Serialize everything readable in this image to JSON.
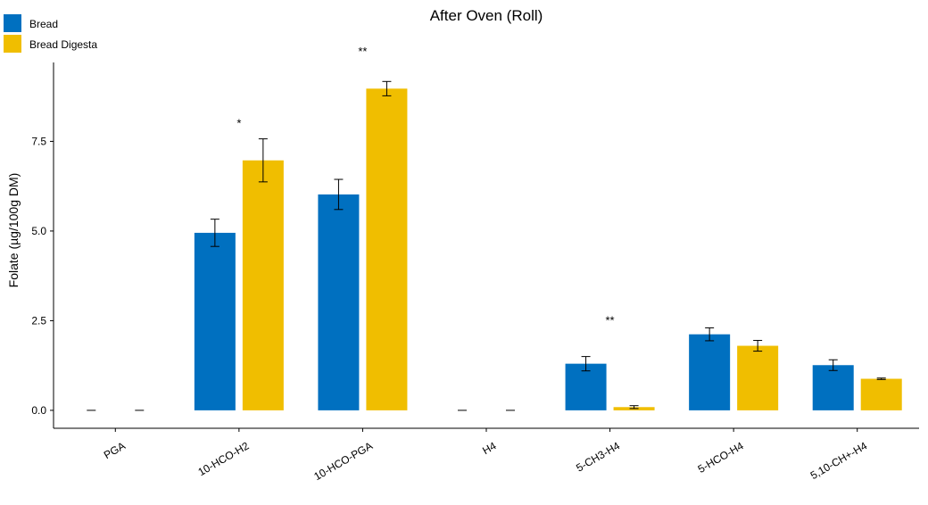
{
  "chart_data": {
    "type": "bar",
    "title": "After Oven (Roll)",
    "xlabel": "",
    "ylabel": "Folate (µg/100g DM)",
    "ylim": [
      -0.5,
      9.7
    ],
    "yticks": [
      0.0,
      2.5,
      5.0,
      7.5
    ],
    "ytick_labels": [
      "0.0",
      "2.5",
      "5.0",
      "7.5"
    ],
    "grid": false,
    "legend_position": "top-left",
    "categories": [
      "PGA",
      "10-HCO-H2",
      "10-HCO-PGA",
      "H4",
      "5-CH3-H4",
      "5-HCO-H4",
      "5,10-CH+-H4"
    ],
    "series": [
      {
        "name": "Bread",
        "color": "#0070C0",
        "values": [
          0.0,
          4.95,
          6.02,
          0.0,
          1.3,
          2.12,
          1.26
        ],
        "errors": [
          0.0,
          0.38,
          0.42,
          0.0,
          0.2,
          0.18,
          0.15
        ]
      },
      {
        "name": "Bread Digesta",
        "color": "#F0BE00",
        "values": [
          0.0,
          6.97,
          8.97,
          0.0,
          0.09,
          1.8,
          0.88
        ],
        "errors": [
          0.0,
          0.6,
          0.2,
          0.0,
          0.04,
          0.15,
          0.02
        ]
      }
    ],
    "annotations": [
      {
        "category": "10-HCO-H2",
        "text": "*",
        "y": 8.0
      },
      {
        "category": "10-HCO-PGA",
        "text": "**",
        "y": 10.0
      },
      {
        "category": "5-CH3-H4",
        "text": "**",
        "y": 2.5
      }
    ]
  }
}
